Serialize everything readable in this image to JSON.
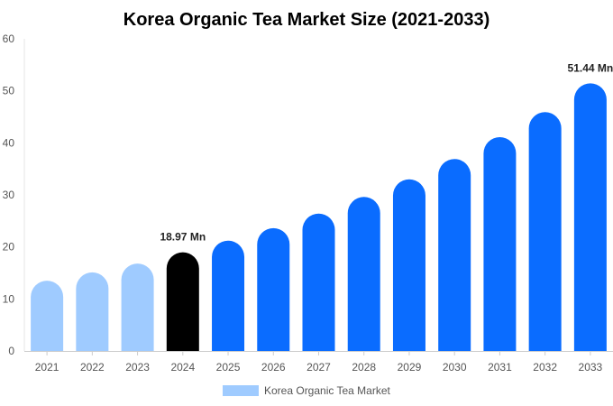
{
  "chart_data": {
    "type": "bar",
    "title": "Korea Organic Tea Market Size (2021-2033)",
    "categories": [
      "2021",
      "2022",
      "2023",
      "2024",
      "2025",
      "2026",
      "2027",
      "2028",
      "2029",
      "2030",
      "2031",
      "2032",
      "2033"
    ],
    "series": [
      {
        "name": "Korea Organic Tea Market",
        "values": [
          13.5,
          15.1,
          16.8,
          18.97,
          21.2,
          23.6,
          26.4,
          29.6,
          33.0,
          36.9,
          41.1,
          45.9,
          51.44
        ]
      }
    ],
    "ylim": [
      0,
      60
    ],
    "yticks": [
      0,
      10,
      20,
      30,
      40,
      50,
      60
    ],
    "data_labels": [
      {
        "index": 3,
        "text": "18.97 Mn"
      },
      {
        "index": 12,
        "text": "51.44 Mn"
      }
    ],
    "colors": {
      "historical": "#9fcbff",
      "base_year": "#000000",
      "forecast": "#0a6cff",
      "legend_swatch": "#9fcbff"
    },
    "legend": "bottom"
  }
}
